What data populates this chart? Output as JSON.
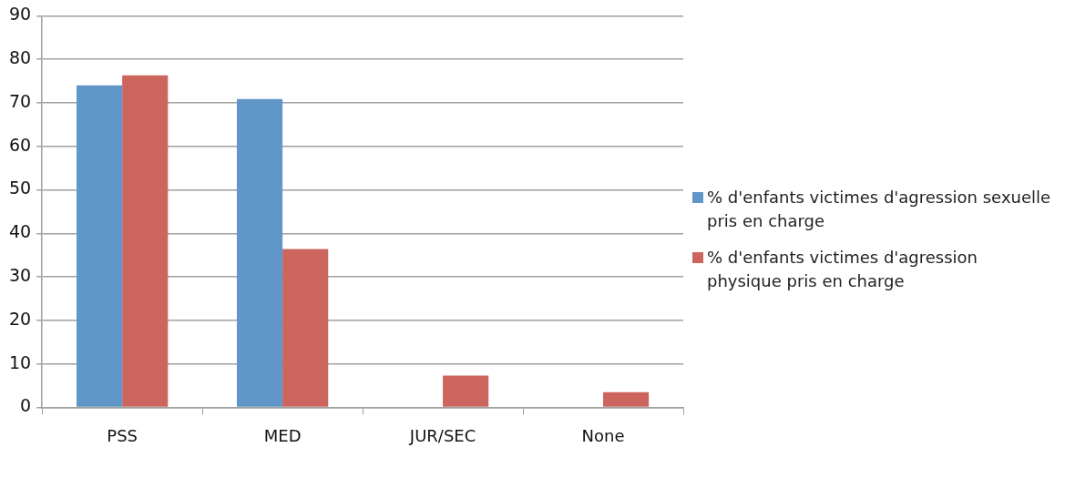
{
  "chart_data": {
    "type": "bar",
    "categories": [
      "PSS",
      "MED",
      "JUR/SEC",
      "None"
    ],
    "series": [
      {
        "name": "% d'enfants victimes d'agression sexuelle pris en charge",
        "color": "#6096c8",
        "values": [
          74.0,
          70.9,
          0,
          0
        ]
      },
      {
        "name": "% d'enfants victimes d'agression physique pris en charge",
        "color": "#cc655d",
        "values": [
          76.3,
          36.4,
          7.3,
          3.5
        ]
      }
    ],
    "ylim": [
      0,
      90
    ],
    "yticks": [
      0,
      10,
      20,
      30,
      40,
      50,
      60,
      70,
      80,
      90
    ],
    "grid": "y",
    "legend": "right"
  }
}
